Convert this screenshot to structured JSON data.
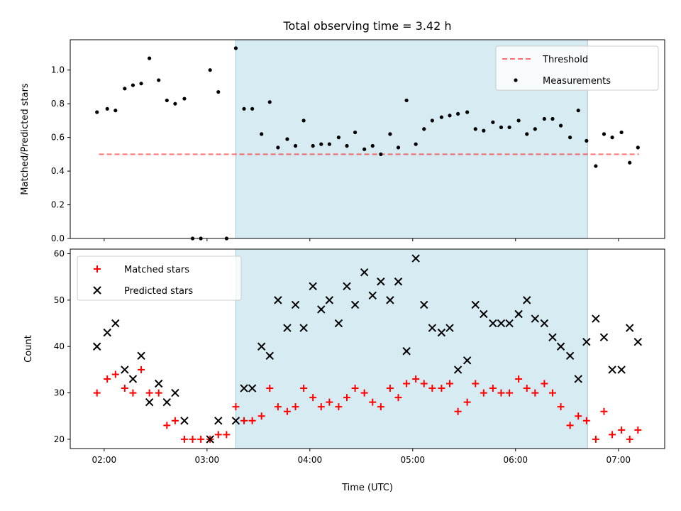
{
  "chart_data": {
    "type": "scatter",
    "title": "Total observing time = 3.42 h",
    "xlabel": "Time (UTC)",
    "x_tick_labels": [
      "02:00",
      "03:00",
      "04:00",
      "05:00",
      "06:00",
      "07:00"
    ],
    "x_tick_values": [
      2.0,
      3.0,
      4.0,
      5.0,
      6.0,
      7.0
    ],
    "xlim": [
      1.67,
      7.45
    ],
    "shaded_interval": {
      "start": 3.28,
      "end": 6.7,
      "color": "#add8e6"
    },
    "panels": [
      {
        "id": "ratio",
        "ylabel": "Matched/Predicted stars",
        "ylim": [
          0.0,
          1.18
        ],
        "y_ticks": [
          0.0,
          0.2,
          0.4,
          0.6,
          0.8,
          1.0
        ],
        "y_tick_labels": [
          "0.0",
          "0.2",
          "0.4",
          "0.6",
          "0.8",
          "1.0"
        ],
        "legend": {
          "placement": "top-right",
          "entries": [
            "Threshold",
            "Measurements"
          ]
        },
        "series": [
          {
            "name": "Threshold",
            "kind": "dashed-line",
            "color": "#ff0000",
            "x": [
              1.95,
              7.2
            ],
            "y": [
              0.5,
              0.5
            ]
          },
          {
            "name": "Measurements",
            "kind": "dot",
            "color": "#000000",
            "x": [
              1.93,
              2.03,
              2.11,
              2.2,
              2.28,
              2.36,
              2.44,
              2.53,
              2.61,
              2.69,
              2.78,
              2.86,
              2.94,
              3.03,
              3.11,
              3.19,
              3.28,
              3.36,
              3.44,
              3.53,
              3.61,
              3.69,
              3.78,
              3.86,
              3.94,
              4.03,
              4.11,
              4.19,
              4.28,
              4.36,
              4.44,
              4.53,
              4.61,
              4.69,
              4.78,
              4.86,
              4.94,
              5.03,
              5.11,
              5.19,
              5.28,
              5.36,
              5.44,
              5.53,
              5.61,
              5.69,
              5.78,
              5.86,
              5.94,
              6.03,
              6.11,
              6.19,
              6.28,
              6.36,
              6.44,
              6.53,
              6.61,
              6.69,
              6.78,
              6.86,
              6.94,
              7.03,
              7.11,
              7.19
            ],
            "y": [
              0.75,
              0.77,
              0.76,
              0.89,
              0.91,
              0.92,
              1.07,
              0.94,
              0.82,
              0.8,
              0.83,
              0.0,
              0.0,
              1.0,
              0.87,
              0.0,
              1.13,
              0.77,
              0.77,
              0.62,
              0.81,
              0.54,
              0.59,
              0.55,
              0.7,
              0.55,
              0.56,
              0.56,
              0.6,
              0.55,
              0.63,
              0.53,
              0.55,
              0.5,
              0.62,
              0.54,
              0.82,
              0.56,
              0.65,
              0.7,
              0.72,
              0.73,
              0.74,
              0.75,
              0.65,
              0.64,
              0.69,
              0.66,
              0.66,
              0.7,
              0.62,
              0.65,
              0.71,
              0.71,
              0.67,
              0.6,
              0.76,
              0.58,
              0.43,
              0.62,
              0.6,
              0.63,
              0.45,
              0.54
            ]
          }
        ]
      },
      {
        "id": "counts",
        "ylabel": "Count",
        "ylim": [
          18.0,
          61.0
        ],
        "y_ticks": [
          20,
          30,
          40,
          50,
          60
        ],
        "y_tick_labels": [
          "20",
          "30",
          "40",
          "50",
          "60"
        ],
        "legend": {
          "placement": "top-left",
          "entries": [
            "Matched stars",
            "Predicted stars"
          ]
        },
        "series": [
          {
            "name": "Matched stars",
            "kind": "plus",
            "color": "#ff0000",
            "x": [
              1.93,
              2.03,
              2.11,
              2.2,
              2.28,
              2.36,
              2.44,
              2.53,
              2.61,
              2.69,
              2.78,
              2.86,
              2.94,
              3.03,
              3.11,
              3.19,
              3.28,
              3.36,
              3.44,
              3.53,
              3.61,
              3.69,
              3.78,
              3.86,
              3.94,
              4.03,
              4.11,
              4.19,
              4.28,
              4.36,
              4.44,
              4.53,
              4.61,
              4.69,
              4.78,
              4.86,
              4.94,
              5.03,
              5.11,
              5.19,
              5.28,
              5.36,
              5.44,
              5.53,
              5.61,
              5.69,
              5.78,
              5.86,
              5.94,
              6.03,
              6.11,
              6.19,
              6.28,
              6.36,
              6.44,
              6.53,
              6.61,
              6.69,
              6.78,
              6.86,
              6.94,
              7.03,
              7.11,
              7.19
            ],
            "y": [
              30,
              33,
              34,
              31,
              30,
              35,
              30,
              30,
              23,
              24,
              20,
              20,
              20,
              20,
              21,
              21,
              27,
              24,
              24,
              25,
              31,
              27,
              26,
              27,
              31,
              29,
              27,
              28,
              27,
              29,
              31,
              30,
              28,
              27,
              31,
              29,
              32,
              33,
              32,
              31,
              31,
              32,
              26,
              28,
              32,
              30,
              31,
              30,
              30,
              33,
              31,
              30,
              32,
              30,
              27,
              23,
              25,
              24,
              20,
              26,
              21,
              22,
              20,
              22
            ]
          },
          {
            "name": "Predicted stars",
            "kind": "x",
            "color": "#000000",
            "x": [
              1.93,
              2.03,
              2.11,
              2.2,
              2.28,
              2.36,
              2.44,
              2.53,
              2.61,
              2.69,
              2.78,
              3.03,
              3.11,
              3.28,
              3.36,
              3.44,
              3.53,
              3.61,
              3.69,
              3.78,
              3.86,
              3.94,
              4.03,
              4.11,
              4.19,
              4.28,
              4.36,
              4.44,
              4.53,
              4.61,
              4.69,
              4.78,
              4.86,
              4.94,
              5.03,
              5.11,
              5.19,
              5.28,
              5.36,
              5.44,
              5.53,
              5.61,
              5.69,
              5.78,
              5.86,
              5.94,
              6.03,
              6.11,
              6.19,
              6.28,
              6.36,
              6.44,
              6.53,
              6.61,
              6.69,
              6.78,
              6.86,
              6.94,
              7.03,
              7.11,
              7.19
            ],
            "y": [
              40,
              43,
              45,
              35,
              33,
              38,
              28,
              32,
              28,
              30,
              24,
              20,
              24,
              24,
              31,
              31,
              40,
              38,
              50,
              44,
              49,
              44,
              53,
              48,
              50,
              45,
              53,
              49,
              56,
              51,
              54,
              50,
              54,
              39,
              59,
              49,
              44,
              43,
              44,
              35,
              37,
              49,
              47,
              45,
              45,
              45,
              47,
              50,
              46,
              45,
              42,
              40,
              38,
              33,
              41,
              46,
              42,
              35,
              35,
              44,
              41
            ]
          }
        ]
      }
    ]
  }
}
